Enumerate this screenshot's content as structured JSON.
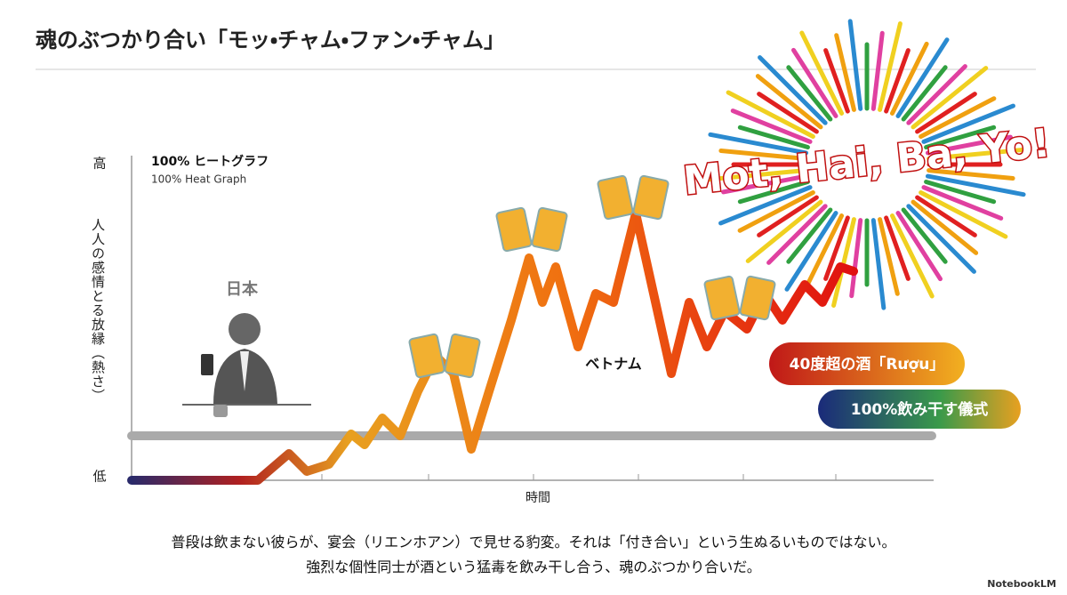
{
  "header": {
    "title": "魂のぶつかり合い「モッ・チャム・ファン・チャム」"
  },
  "graph": {
    "heading": "100% ヒートグラフ",
    "subheading": "100% Heat Graph",
    "y_high": "高",
    "y_low": "低",
    "y_label": "人人の感情とる放縁（熱さ）",
    "x_label": "時間",
    "japan_label": "日本",
    "vietnam_label": "ベトナム",
    "burst_text": "Mot, Hai, Ba, Yo!",
    "callouts": [
      "40度超の酒「Rượu」",
      "100%飲み干す儀式"
    ]
  },
  "caption": [
    "普段は飲まない彼らが、宴会（リエンホアン）で見せる豹変。それは「付き合い」という生ぬるいものではない。",
    "強烈な個性同士が酒という猛毒を飲み干し合う、魂のぶつかり合いだ。"
  ],
  "brand": "NotebookLM"
}
